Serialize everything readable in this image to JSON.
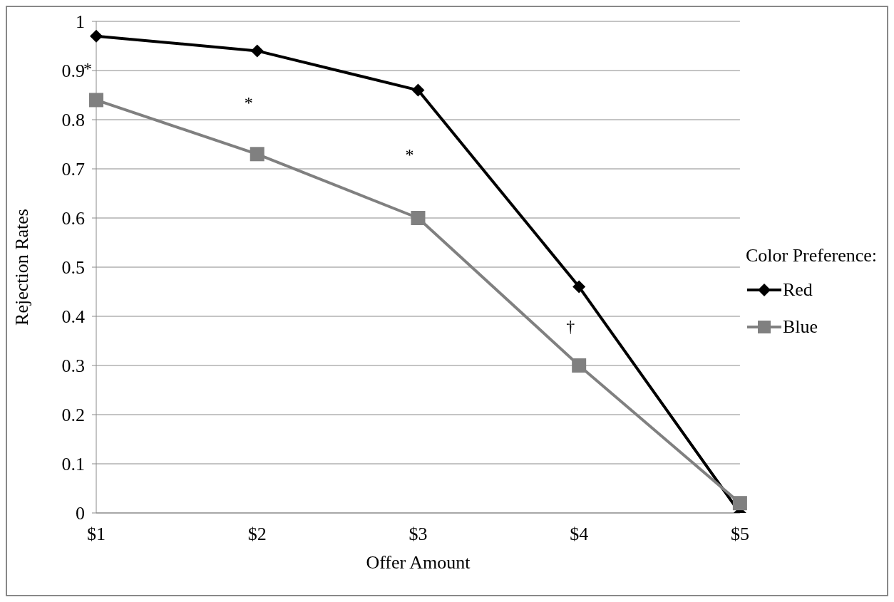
{
  "chart_data": {
    "type": "line",
    "xlabel": "Offer Amount",
    "ylabel": "Rejection Rates",
    "legend_title": "Color Preference:",
    "categories": [
      "$1",
      "$2",
      "$3",
      "$4",
      "$5"
    ],
    "series": [
      {
        "name": "Red",
        "color": "#000000",
        "marker": "diamond",
        "values": [
          0.97,
          0.94,
          0.86,
          0.46,
          0.0
        ]
      },
      {
        "name": "Blue",
        "color": "#808080",
        "marker": "square",
        "values": [
          0.84,
          0.73,
          0.6,
          0.3,
          0.02
        ]
      }
    ],
    "ylim": [
      0,
      1
    ],
    "yticks": [
      0,
      0.1,
      0.2,
      0.3,
      0.4,
      0.5,
      0.6,
      0.7,
      0.8,
      0.9,
      1
    ],
    "grid": "y",
    "legend": "right",
    "annotations": [
      "*",
      "*",
      "*",
      "†"
    ]
  }
}
